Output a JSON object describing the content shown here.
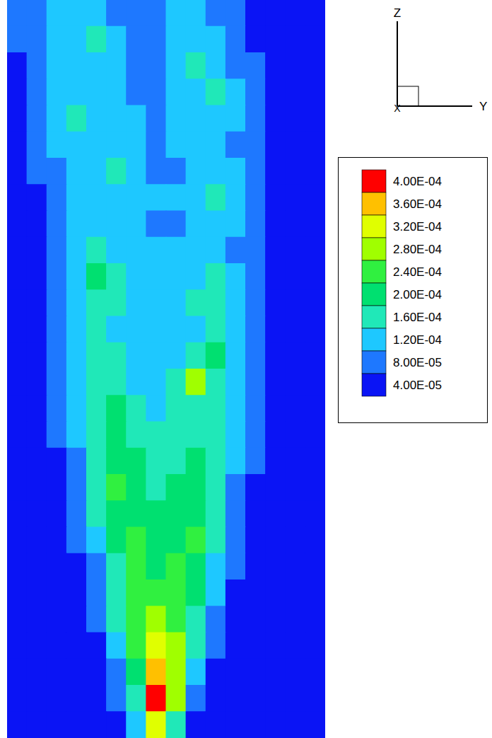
{
  "chart_data": {
    "type": "heatmap",
    "tick_labels": false,
    "triad": {
      "vertical": "Z",
      "horizontal": "Y",
      "normal": "X"
    },
    "cells": [
      [
        9e-05,
        9e-05,
        0.00013,
        0.00013,
        0.00013,
        9e-05,
        9e-05,
        9e-05,
        0.00013,
        0.00013,
        9e-05,
        9e-05,
        3e-05,
        3e-05,
        3e-05,
        3e-05
      ],
      [
        9e-05,
        9e-05,
        0.00013,
        0.00013,
        0.00017,
        0.00013,
        9e-05,
        9e-05,
        0.00013,
        0.00013,
        0.00013,
        9e-05,
        3e-05,
        3e-05,
        3e-05,
        3e-05
      ],
      [
        3e-05,
        9e-05,
        0.00013,
        0.00013,
        0.00013,
        0.00013,
        9e-05,
        9e-05,
        0.00013,
        0.00017,
        0.00013,
        9e-05,
        9e-05,
        3e-05,
        3e-05,
        3e-05
      ],
      [
        3e-05,
        9e-05,
        0.00013,
        0.00013,
        0.00013,
        0.00013,
        9e-05,
        9e-05,
        0.00013,
        0.00013,
        0.00017,
        0.00013,
        9e-05,
        3e-05,
        3e-05,
        3e-05
      ],
      [
        3e-05,
        9e-05,
        0.00013,
        0.00017,
        0.00013,
        0.00013,
        0.00013,
        9e-05,
        0.00013,
        0.00013,
        0.00013,
        0.00013,
        9e-05,
        3e-05,
        3e-05,
        3e-05
      ],
      [
        3e-05,
        9e-05,
        0.00013,
        0.00013,
        0.00013,
        0.00013,
        0.00013,
        9e-05,
        0.00013,
        0.00013,
        0.00013,
        9e-05,
        9e-05,
        3e-05,
        3e-05,
        3e-05
      ],
      [
        3e-05,
        9e-05,
        9e-05,
        0.00013,
        0.00013,
        0.00017,
        0.00013,
        9e-05,
        9e-05,
        0.00013,
        0.00013,
        0.00013,
        9e-05,
        3e-05,
        3e-05,
        3e-05
      ],
      [
        3e-05,
        3e-05,
        9e-05,
        0.00013,
        0.00013,
        0.00013,
        0.00013,
        0.00013,
        0.00013,
        0.00013,
        0.00017,
        0.00013,
        9e-05,
        3e-05,
        3e-05,
        3e-05
      ],
      [
        3e-05,
        3e-05,
        9e-05,
        0.00013,
        0.00013,
        0.00013,
        0.00013,
        9e-05,
        9e-05,
        0.00013,
        0.00013,
        0.00013,
        9e-05,
        3e-05,
        3e-05,
        3e-05
      ],
      [
        3e-05,
        3e-05,
        9e-05,
        0.00013,
        0.00017,
        0.00013,
        0.00013,
        0.00013,
        0.00013,
        0.00013,
        0.00013,
        9e-05,
        9e-05,
        3e-05,
        3e-05,
        3e-05
      ],
      [
        3e-05,
        3e-05,
        9e-05,
        0.00013,
        0.00021,
        0.00017,
        0.00013,
        0.00013,
        0.00013,
        0.00013,
        0.00017,
        0.00013,
        9e-05,
        3e-05,
        3e-05,
        3e-05
      ],
      [
        3e-05,
        3e-05,
        9e-05,
        0.00013,
        0.00017,
        0.00017,
        0.00013,
        0.00013,
        0.00013,
        0.00017,
        0.00017,
        0.00013,
        9e-05,
        3e-05,
        3e-05,
        3e-05
      ],
      [
        3e-05,
        3e-05,
        9e-05,
        0.00013,
        0.00017,
        0.00013,
        0.00013,
        0.00013,
        0.00013,
        0.00013,
        0.00017,
        0.00013,
        9e-05,
        3e-05,
        3e-05,
        3e-05
      ],
      [
        3e-05,
        3e-05,
        9e-05,
        0.00013,
        0.00017,
        0.00017,
        0.00013,
        0.00013,
        0.00013,
        0.00017,
        0.00021,
        0.00013,
        9e-05,
        3e-05,
        3e-05,
        3e-05
      ],
      [
        3e-05,
        3e-05,
        9e-05,
        0.00013,
        0.00017,
        0.00017,
        0.00013,
        0.00013,
        0.00017,
        0.00029,
        0.00017,
        0.00013,
        9e-05,
        3e-05,
        3e-05,
        3e-05
      ],
      [
        3e-05,
        3e-05,
        9e-05,
        0.00013,
        0.00017,
        0.00021,
        0.00017,
        0.00013,
        0.00017,
        0.00017,
        0.00017,
        0.00013,
        9e-05,
        3e-05,
        3e-05,
        3e-05
      ],
      [
        3e-05,
        3e-05,
        9e-05,
        0.00013,
        0.00017,
        0.00021,
        0.00017,
        0.00017,
        0.00017,
        0.00017,
        0.00017,
        0.00013,
        9e-05,
        3e-05,
        3e-05,
        3e-05
      ],
      [
        3e-05,
        3e-05,
        3e-05,
        9e-05,
        0.00017,
        0.00021,
        0.00021,
        0.00017,
        0.00017,
        0.00021,
        0.00017,
        0.00013,
        9e-05,
        3e-05,
        3e-05,
        3e-05
      ],
      [
        3e-05,
        3e-05,
        3e-05,
        9e-05,
        0.00017,
        0.00025,
        0.00021,
        0.00017,
        0.00021,
        0.00021,
        0.00017,
        9e-05,
        3e-05,
        3e-05,
        3e-05,
        3e-05
      ],
      [
        3e-05,
        3e-05,
        3e-05,
        9e-05,
        0.00017,
        0.00021,
        0.00021,
        0.00021,
        0.00021,
        0.00021,
        0.00017,
        9e-05,
        3e-05,
        3e-05,
        3e-05,
        3e-05
      ],
      [
        3e-05,
        3e-05,
        3e-05,
        9e-05,
        0.00013,
        0.00021,
        0.00025,
        0.00021,
        0.00021,
        0.00025,
        0.00017,
        9e-05,
        3e-05,
        3e-05,
        3e-05,
        3e-05
      ],
      [
        3e-05,
        3e-05,
        3e-05,
        3e-05,
        9e-05,
        0.00017,
        0.00025,
        0.00021,
        0.00025,
        0.00021,
        0.00013,
        9e-05,
        3e-05,
        3e-05,
        3e-05,
        3e-05
      ],
      [
        3e-05,
        3e-05,
        3e-05,
        3e-05,
        9e-05,
        0.00017,
        0.00025,
        0.00025,
        0.00025,
        0.00021,
        0.00013,
        3e-05,
        3e-05,
        3e-05,
        3e-05,
        3e-05
      ],
      [
        3e-05,
        3e-05,
        3e-05,
        3e-05,
        9e-05,
        0.00017,
        0.00025,
        0.00029,
        0.00025,
        0.00017,
        9e-05,
        3e-05,
        3e-05,
        3e-05,
        3e-05,
        3e-05
      ],
      [
        3e-05,
        3e-05,
        3e-05,
        3e-05,
        3e-05,
        0.00013,
        0.00025,
        0.00033,
        0.00029,
        0.00017,
        9e-05,
        3e-05,
        3e-05,
        3e-05,
        3e-05,
        3e-05
      ],
      [
        3e-05,
        3e-05,
        3e-05,
        3e-05,
        3e-05,
        9e-05,
        0.00021,
        0.00037,
        0.00029,
        0.00013,
        3e-05,
        3e-05,
        3e-05,
        3e-05,
        3e-05,
        3e-05
      ],
      [
        3e-05,
        3e-05,
        3e-05,
        3e-05,
        3e-05,
        9e-05,
        0.00017,
        0.0004,
        0.00029,
        9e-05,
        3e-05,
        3e-05,
        3e-05,
        3e-05,
        3e-05,
        3e-05
      ],
      [
        3e-05,
        3e-05,
        3e-05,
        3e-05,
        3e-05,
        3e-05,
        0.00013,
        0.00033,
        0.00017,
        3e-05,
        3e-05,
        3e-05,
        3e-05,
        3e-05,
        3e-05,
        3e-05
      ]
    ],
    "colorbar": {
      "range": [
        4e-05,
        0.0004
      ],
      "ticks": [
        {
          "value": 4e-05,
          "label": "4.00E-05"
        },
        {
          "value": 8e-05,
          "label": "8.00E-05"
        },
        {
          "value": 0.00012,
          "label": "1.20E-04"
        },
        {
          "value": 0.00016,
          "label": "1.60E-04"
        },
        {
          "value": 0.0002,
          "label": "2.00E-04"
        },
        {
          "value": 0.00024,
          "label": "2.40E-04"
        },
        {
          "value": 0.00028,
          "label": "2.80E-04"
        },
        {
          "value": 0.00032,
          "label": "3.20E-04"
        },
        {
          "value": 0.00036,
          "label": "3.60E-04"
        },
        {
          "value": 0.0004,
          "label": "4.00E-04"
        }
      ],
      "colors": [
        "#0a14f5",
        "#1e78ff",
        "#1ec8ff",
        "#20e8b8",
        "#00e070",
        "#30f040",
        "#a0ff00",
        "#e0ff00",
        "#ffc000",
        "#ff0000"
      ]
    }
  }
}
